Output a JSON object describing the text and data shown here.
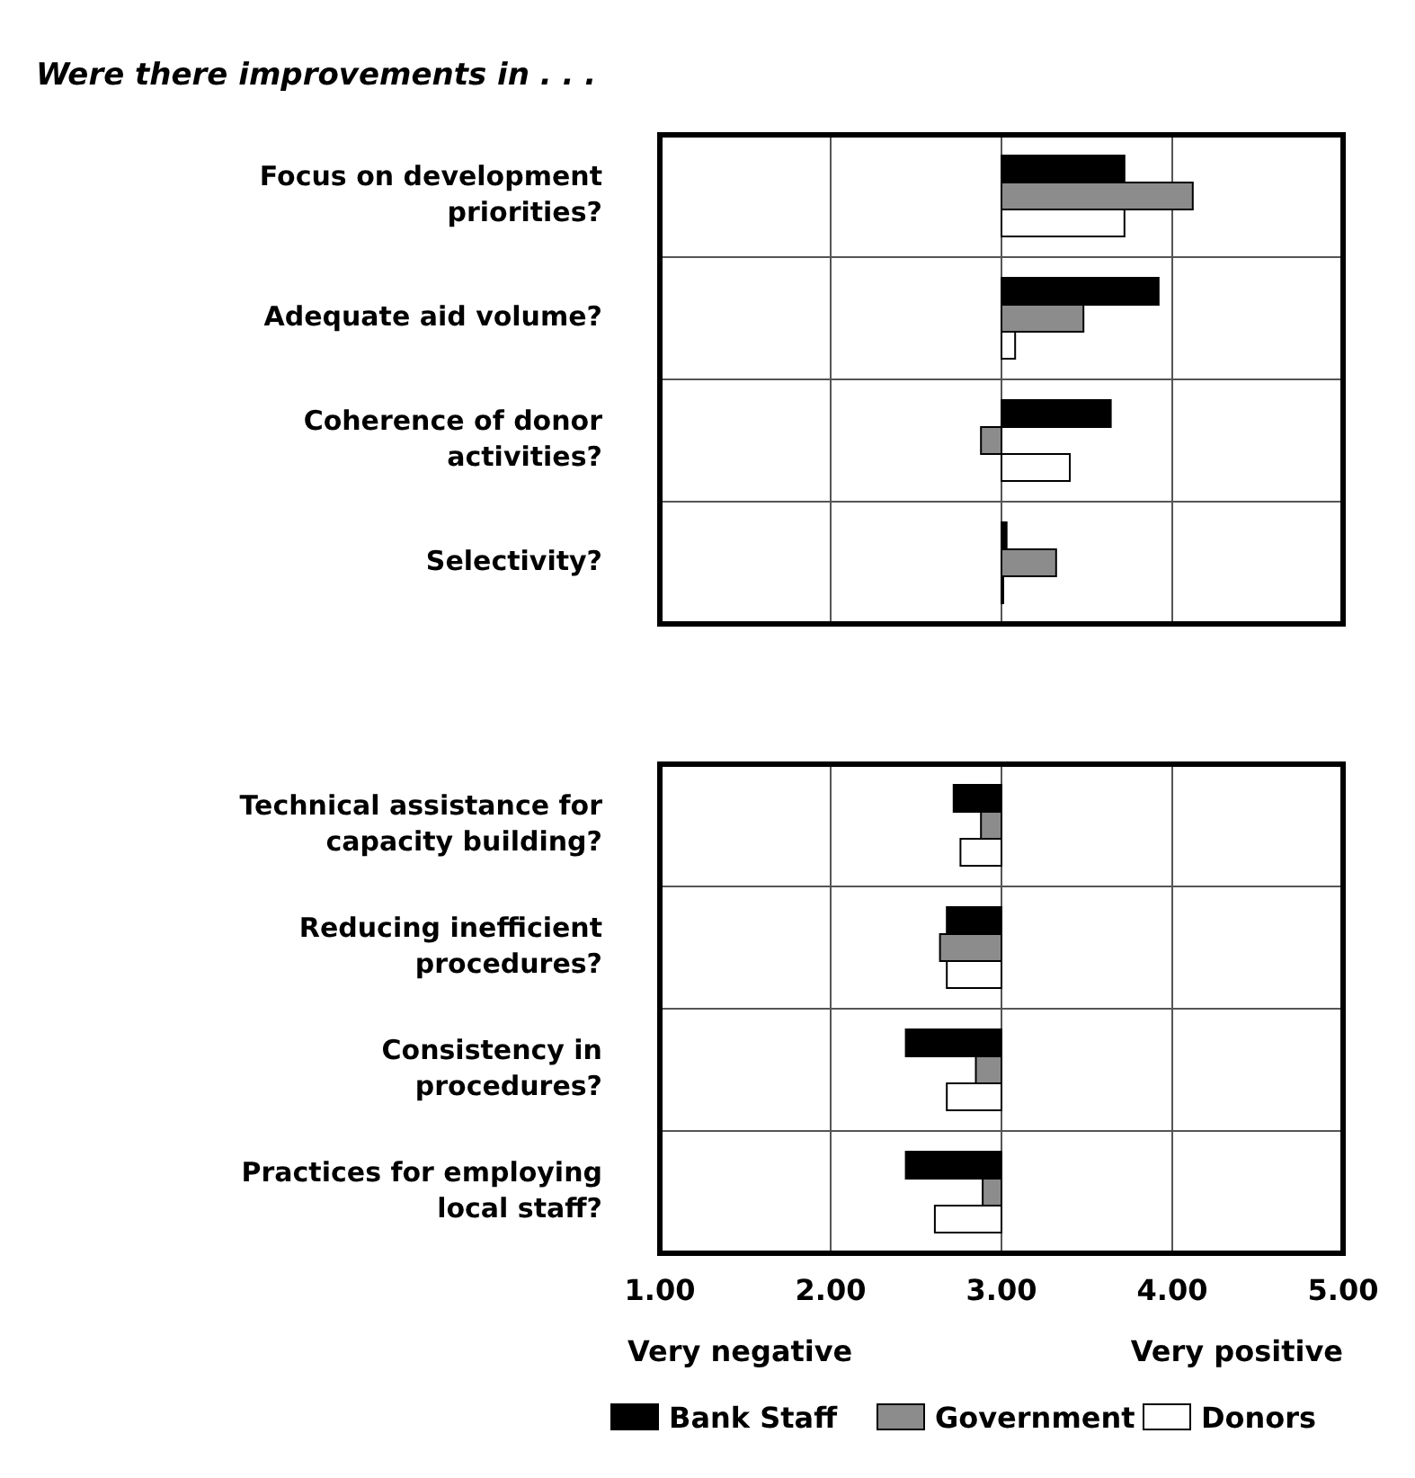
{
  "chart_data": [
    {
      "type": "bar",
      "orientation": "horizontal",
      "title": "Were there improvements in . . .",
      "categories": [
        "Focus on development priorities?",
        "Adequate aid volume?",
        "Coherence of donor activities?",
        "Selectivity?"
      ],
      "xlim": [
        1,
        5
      ],
      "xticks": [
        1,
        2,
        3,
        4,
        5
      ],
      "tick_labels": false,
      "grid": true,
      "series": [
        {
          "color": "#000000",
          "base": [
            3,
            3,
            3,
            3
          ],
          "values": [
            0.72,
            0.92,
            0.64,
            0.03
          ]
        },
        {
          "color": "#8c8c8c",
          "base": [
            3,
            3,
            3,
            3
          ],
          "values": [
            1.12,
            0.48,
            -0.12,
            0.32
          ]
        },
        {
          "color": "#ffffff",
          "base": [
            3,
            3,
            3,
            3
          ],
          "values": [
            0.72,
            0.08,
            0.4,
            0
          ]
        }
      ]
    },
    {
      "type": "bar",
      "orientation": "horizontal",
      "categories": [
        "Technical assistance for capacity building?",
        "Reducing inefficient procedures?",
        "Consistency in procedures?",
        "Practices for employing local staff?"
      ],
      "xlim": [
        1,
        5
      ],
      "xticks": [
        {
          "value": 1,
          "label": "1.00"
        },
        {
          "value": 2,
          "label": "2.00"
        },
        {
          "value": 3,
          "label": "3.00"
        },
        {
          "value": 4,
          "label": "4.00"
        },
        {
          "value": 5,
          "label": "5.00"
        }
      ],
      "tick_labels": "x",
      "grid": true,
      "legend": "bottom",
      "annotations": [
        "Very negative",
        "Very positive"
      ],
      "series": [
        {
          "name": "Bank Staff",
          "color": "#000000",
          "base": [
            3,
            3,
            3,
            3
          ],
          "values": [
            -0.28,
            -0.32,
            -0.56,
            -0.56
          ]
        },
        {
          "name": "Government",
          "color": "#8c8c8c",
          "base": [
            3,
            3,
            3,
            3
          ],
          "values": [
            -0.12,
            -0.36,
            -0.15,
            -0.11
          ]
        },
        {
          "name": "Donors",
          "color": "#ffffff",
          "base": [
            3,
            3,
            3,
            3
          ],
          "values": [
            -0.24,
            -0.32,
            -0.32,
            -0.39
          ]
        }
      ]
    }
  ]
}
